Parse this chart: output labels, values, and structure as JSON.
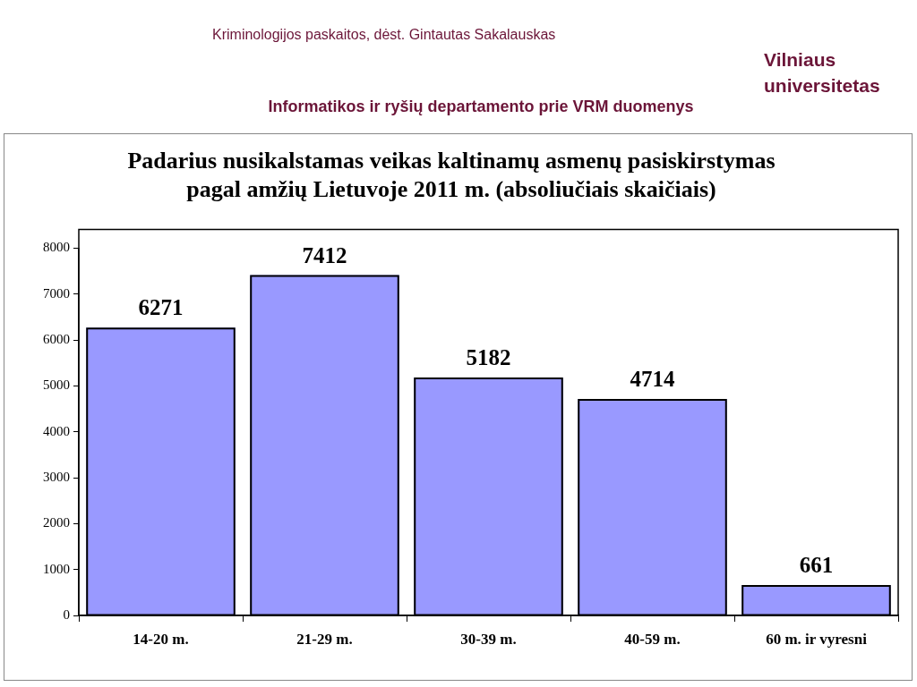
{
  "chart_data": {
    "type": "bar",
    "title": "Padarius nusikalstamas veikas kaltinamų asmenų pasiskirstymas pagal amžių Lietuvoje 2011 m. (absoliučiais skaičiais)",
    "annotations": [
      "Kriminologijos paskaitos, dėst. Gintautas Sakalauskas",
      "Informatikos ir ryšių departamento prie VRM duomenys",
      "Vilniaus universitetas"
    ],
    "categories": [
      "14-20 m.",
      "21-29 m.",
      "30-39 m.",
      "40-59 m.",
      "60 m. ir vyresni"
    ],
    "values": [
      6271,
      7412,
      5182,
      4714,
      661
    ],
    "color": "#9999ff",
    "ylim": [
      0,
      8000
    ],
    "yticks": [
      0,
      1000,
      2000,
      3000,
      4000,
      5000,
      6000,
      7000,
      8000
    ],
    "grid": false,
    "data_labels": true
  }
}
